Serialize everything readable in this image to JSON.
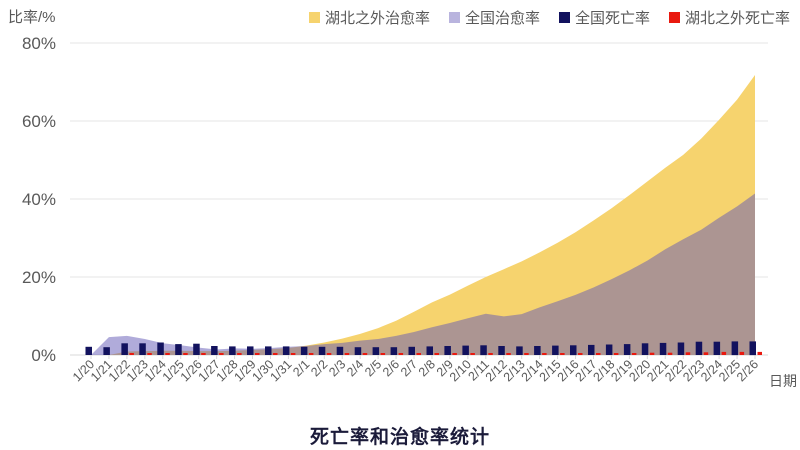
{
  "chart_data": {
    "type": "area+bar combo",
    "title": "死亡率和治愈率统计",
    "xlabel": "日期",
    "ylabel": "比率/%",
    "ylim": [
      0,
      80
    ],
    "ytick_labels": [
      "0%",
      "20%",
      "40%",
      "60%",
      "80%"
    ],
    "grid": "horizontal",
    "legend_position": "top-right",
    "categories": [
      "1/20",
      "1/21",
      "1/22",
      "1/23",
      "1/24",
      "1/25",
      "1/26",
      "1/27",
      "1/28",
      "1/29",
      "1/30",
      "1/31",
      "2/1",
      "2/2",
      "2/3",
      "2/4",
      "2/5",
      "2/6",
      "2/7",
      "2/8",
      "2/9",
      "2/10",
      "2/11",
      "2/12",
      "2/13",
      "2/14",
      "2/15",
      "2/16",
      "2/17",
      "2/18",
      "2/19",
      "2/20",
      "2/21",
      "2/22",
      "2/23",
      "2/24",
      "2/25",
      "2/26"
    ],
    "series": [
      {
        "key": "outside-hubei-cure",
        "name": "湖北之外治愈率",
        "type": "area",
        "color": "#F6D36E",
        "legend_color": "#F6D36E",
        "values": [
          0,
          0,
          0.9,
          1,
          1.1,
          1.1,
          1,
          1,
          1.1,
          1.3,
          1.5,
          1.8,
          2.4,
          3.2,
          4.2,
          5.4,
          6.9,
          8.8,
          11.1,
          13.5,
          15.5,
          17.8,
          20,
          22,
          24,
          26.3,
          28.8,
          31.5,
          34.5,
          37.6,
          41,
          44.5,
          48,
          51.3,
          55.5,
          60.3,
          65.5,
          71.8
        ]
      },
      {
        "key": "national-cure",
        "name": "全国治愈率",
        "type": "area",
        "color": "rgba(97,87,182,0.5)",
        "legend_color": "#B9B4DE",
        "values": [
          0,
          4.6,
          4.9,
          4.1,
          3,
          2.5,
          1.9,
          1.4,
          1.7,
          1.6,
          1.8,
          2.1,
          2.3,
          2.8,
          3.1,
          3.7,
          4.1,
          4.9,
          5.9,
          7.1,
          8.2,
          9.4,
          10.6,
          9.9,
          10.5,
          12.2,
          13.8,
          15.4,
          17.3,
          19.4,
          21.7,
          24.2,
          27.1,
          29.7,
          32.1,
          35.2,
          38.1,
          41.4
        ]
      },
      {
        "key": "national-death",
        "name": "全国死亡率",
        "type": "bar",
        "color": "#12125E",
        "legend_color": "#12125E",
        "values": [
          2.1,
          2,
          3,
          3,
          3.2,
          2.8,
          2.9,
          2.3,
          2.2,
          2.2,
          2.2,
          2.2,
          2.1,
          2.1,
          2.1,
          2,
          2,
          2,
          2.1,
          2.2,
          2.3,
          2.4,
          2.5,
          2.3,
          2.2,
          2.3,
          2.4,
          2.5,
          2.6,
          2.7,
          2.8,
          3,
          3.1,
          3.2,
          3.4,
          3.4,
          3.5,
          3.5
        ]
      },
      {
        "key": "outside-hubei-death",
        "name": "湖北之外死亡率",
        "type": "bar",
        "color": "#E9190F",
        "legend_color": "#E9190F",
        "values": [
          0,
          0,
          0.3,
          0.4,
          0.4,
          0.3,
          0.3,
          0.2,
          0.2,
          0.2,
          0.2,
          0.2,
          0.2,
          0.2,
          0.2,
          0.2,
          0.2,
          0.2,
          0.2,
          0.2,
          0.3,
          0.3,
          0.3,
          0.3,
          0.3,
          0.4,
          0.4,
          0.4,
          0.4,
          0.5,
          0.5,
          0.6,
          0.6,
          0.7,
          0.7,
          0.8,
          0.8,
          0.8
        ]
      }
    ],
    "axis_text_color": "#595959",
    "gridline_color": "#E6E6E6",
    "baseline_color": "#D8D8D8",
    "title_color": "#1b1b3a"
  }
}
